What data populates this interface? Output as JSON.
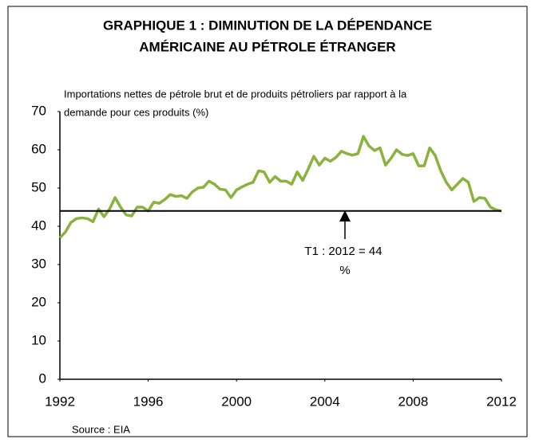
{
  "chart_data": {
    "type": "line",
    "title": [
      "GRAPHIQUE 1 : DIMINUTION DE LA DÉPENDANCE",
      "AMÉRICAINE AU PÉTROLE ÉTRANGER"
    ],
    "ylabel": [
      "Importations nettes de pétrole brut et de produits pétroliers par rapport à la",
      "demande pour ces produits (%)"
    ],
    "source": "Source : EIA",
    "annotation": [
      "T1 : 2012 = 44",
      "%"
    ],
    "hline": 44,
    "x": [
      1992,
      1992.25,
      1992.5,
      1992.75,
      1993,
      1993.25,
      1993.5,
      1993.75,
      1994,
      1994.25,
      1994.5,
      1994.75,
      1995,
      1995.25,
      1995.5,
      1995.75,
      1996,
      1996.25,
      1996.5,
      1996.75,
      1997,
      1997.25,
      1997.5,
      1997.75,
      1998,
      1998.25,
      1998.5,
      1998.75,
      1999,
      1999.25,
      1999.5,
      1999.75,
      2000,
      2000.25,
      2000.5,
      2000.75,
      2001,
      2001.25,
      2001.5,
      2001.75,
      2002,
      2002.25,
      2002.5,
      2002.75,
      2003,
      2003.25,
      2003.5,
      2003.75,
      2004,
      2004.25,
      2004.5,
      2004.75,
      2005,
      2005.25,
      2005.5,
      2005.75,
      2006,
      2006.25,
      2006.5,
      2006.75,
      2007,
      2007.25,
      2007.5,
      2007.75,
      2008,
      2008.25,
      2008.5,
      2008.75,
      2009,
      2009.25,
      2009.5,
      2009.75,
      2010,
      2010.25,
      2010.5,
      2010.75,
      2011,
      2011.25,
      2011.5,
      2011.75,
      2012
    ],
    "series": [
      {
        "color": "#8ab23d",
        "values": [
          37,
          38.5,
          41,
          42,
          42.2,
          42,
          41.2,
          44.5,
          42.5,
          44.5,
          47.5,
          45,
          43,
          42.7,
          45,
          45,
          44,
          46.3,
          46,
          47,
          48.3,
          47.8,
          48,
          47.3,
          49,
          50,
          50.2,
          51.8,
          51,
          49.7,
          49.5,
          47.5,
          49.5,
          50.3,
          51,
          51.5,
          54.5,
          54.2,
          51.5,
          53,
          51.8,
          51.8,
          51,
          54.2,
          52,
          55,
          58.3,
          56,
          57.8,
          57,
          58,
          59.6,
          59,
          58.6,
          59,
          63.5,
          61,
          59.8,
          60.5,
          56,
          57.8,
          60,
          58.8,
          58.5,
          59,
          55.8,
          55.8,
          60.5,
          58.5,
          54.5,
          51.5,
          49.5,
          51,
          52.5,
          51.5,
          46.5,
          47.5,
          47.3,
          45,
          44.3,
          44
        ]
      }
    ],
    "xlim": [
      1992,
      2012
    ],
    "xticks": [
      1992,
      1996,
      2000,
      2004,
      2008,
      2012
    ],
    "ylim": [
      0,
      70
    ],
    "yticks": [
      0,
      10,
      20,
      30,
      40,
      50,
      60,
      70
    ]
  }
}
